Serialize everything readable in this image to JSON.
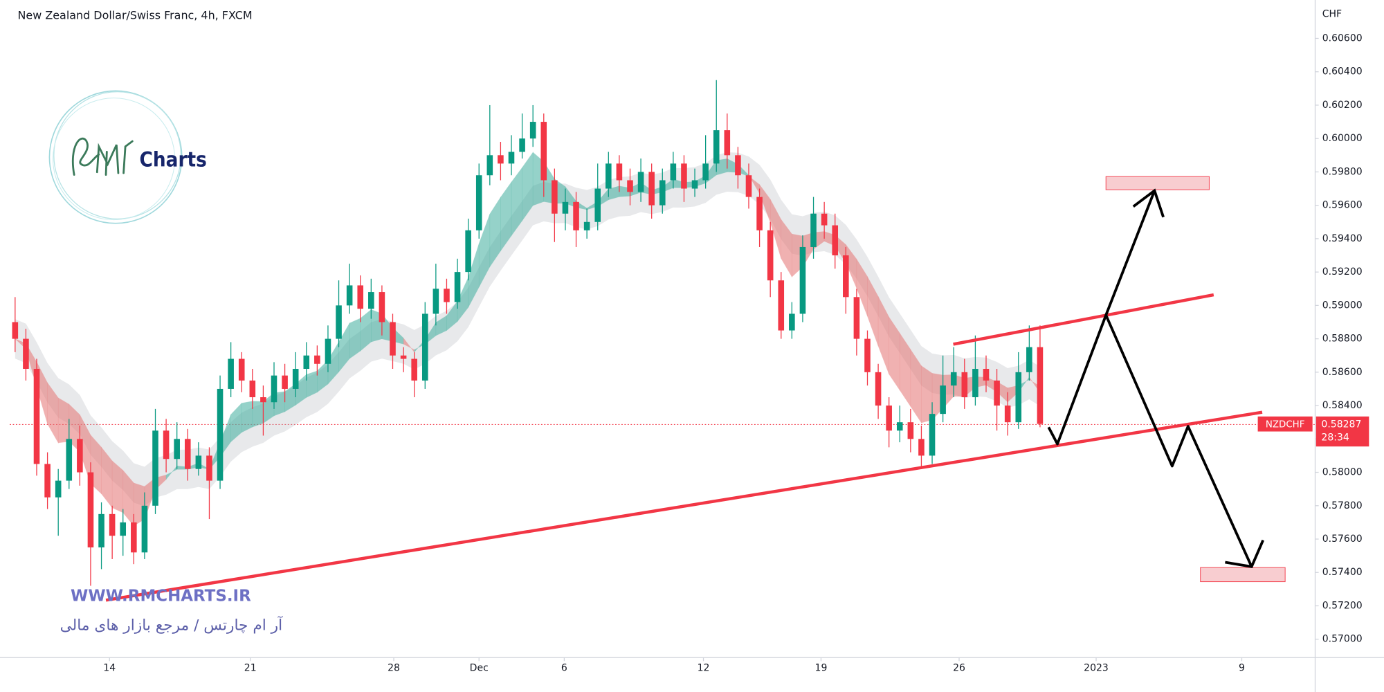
{
  "chart_data": {
    "type": "candlestick",
    "title": "New Zealand Dollar/Swiss Franc, 4h, FXCM",
    "currency": "CHF",
    "up_color": "#089981",
    "down_color": "#f23645",
    "ylim": [
      0.5689,
      0.6083
    ],
    "yticks": [
      {
        "value": 0.57,
        "label": "0.57000"
      },
      {
        "value": 0.572,
        "label": "0.57200"
      },
      {
        "value": 0.574,
        "label": "0.57400"
      },
      {
        "value": 0.576,
        "label": "0.57600"
      },
      {
        "value": 0.578,
        "label": "0.57800"
      },
      {
        "value": 0.58,
        "label": "0.58000"
      },
      {
        "value": 0.582,
        "label": "0.58200"
      },
      {
        "value": 0.584,
        "label": "0.58400"
      },
      {
        "value": 0.586,
        "label": "0.58600"
      },
      {
        "value": 0.588,
        "label": "0.58800"
      },
      {
        "value": 0.59,
        "label": "0.59000"
      },
      {
        "value": 0.592,
        "label": "0.59200"
      },
      {
        "value": 0.594,
        "label": "0.59400"
      },
      {
        "value": 0.596,
        "label": "0.59600"
      },
      {
        "value": 0.598,
        "label": "0.59800"
      },
      {
        "value": 0.6,
        "label": "0.60000"
      },
      {
        "value": 0.602,
        "label": "0.60200"
      },
      {
        "value": 0.604,
        "label": "0.60400"
      },
      {
        "value": 0.606,
        "label": "0.60600"
      }
    ],
    "xlim": [
      -0.5,
      120.5
    ],
    "xticks": [
      {
        "value": 8.75,
        "label": "14"
      },
      {
        "value": 21.8,
        "label": "21"
      },
      {
        "value": 35.1,
        "label": "28"
      },
      {
        "value": 43.0,
        "label": "Dec"
      },
      {
        "value": 50.9,
        "label": "6"
      },
      {
        "value": 63.8,
        "label": "12"
      },
      {
        "value": 74.7,
        "label": "19"
      },
      {
        "value": 87.5,
        "label": "26"
      },
      {
        "value": 100.2,
        "label": "2023"
      },
      {
        "value": 113.7,
        "label": "9"
      }
    ],
    "ohlc": [
      [
        0.589,
        0.5905,
        0.5872,
        0.588
      ],
      [
        0.588,
        0.5886,
        0.5855,
        0.5862
      ],
      [
        0.5862,
        0.5868,
        0.5798,
        0.5805
      ],
      [
        0.5805,
        0.5812,
        0.5778,
        0.5785
      ],
      [
        0.5785,
        0.5802,
        0.5762,
        0.5795
      ],
      [
        0.5795,
        0.5832,
        0.579,
        0.582
      ],
      [
        0.582,
        0.5828,
        0.5792,
        0.58
      ],
      [
        0.58,
        0.5806,
        0.5732,
        0.5755
      ],
      [
        0.5755,
        0.5782,
        0.5742,
        0.5775
      ],
      [
        0.5775,
        0.578,
        0.5748,
        0.5762
      ],
      [
        0.5762,
        0.5778,
        0.575,
        0.577
      ],
      [
        0.577,
        0.5775,
        0.5745,
        0.5752
      ],
      [
        0.5752,
        0.5788,
        0.5748,
        0.578
      ],
      [
        0.578,
        0.5838,
        0.5775,
        0.5825
      ],
      [
        0.5825,
        0.5832,
        0.58,
        0.5808
      ],
      [
        0.5808,
        0.583,
        0.5802,
        0.582
      ],
      [
        0.582,
        0.5826,
        0.5795,
        0.5802
      ],
      [
        0.5802,
        0.5818,
        0.5798,
        0.581
      ],
      [
        0.581,
        0.5815,
        0.5772,
        0.5795
      ],
      [
        0.5795,
        0.5858,
        0.579,
        0.585
      ],
      [
        0.585,
        0.5878,
        0.5845,
        0.5868
      ],
      [
        0.5868,
        0.5872,
        0.5848,
        0.5855
      ],
      [
        0.5855,
        0.5862,
        0.5838,
        0.5845
      ],
      [
        0.5845,
        0.5852,
        0.5822,
        0.5842
      ],
      [
        0.5842,
        0.5866,
        0.5838,
        0.5858
      ],
      [
        0.5858,
        0.5865,
        0.5842,
        0.585
      ],
      [
        0.585,
        0.5872,
        0.5845,
        0.5862
      ],
      [
        0.5862,
        0.5878,
        0.5855,
        0.587
      ],
      [
        0.587,
        0.5876,
        0.5858,
        0.5865
      ],
      [
        0.5865,
        0.5888,
        0.586,
        0.588
      ],
      [
        0.588,
        0.5915,
        0.5875,
        0.59
      ],
      [
        0.59,
        0.5925,
        0.5895,
        0.5912
      ],
      [
        0.5912,
        0.5918,
        0.589,
        0.5898
      ],
      [
        0.5898,
        0.5916,
        0.5892,
        0.5908
      ],
      [
        0.5908,
        0.5912,
        0.5882,
        0.589
      ],
      [
        0.589,
        0.5895,
        0.5862,
        0.587
      ],
      [
        0.587,
        0.5875,
        0.586,
        0.5868
      ],
      [
        0.5868,
        0.5872,
        0.5845,
        0.5855
      ],
      [
        0.5855,
        0.5902,
        0.585,
        0.5895
      ],
      [
        0.5895,
        0.5925,
        0.5888,
        0.591
      ],
      [
        0.591,
        0.5916,
        0.5895,
        0.5902
      ],
      [
        0.5902,
        0.5928,
        0.5898,
        0.592
      ],
      [
        0.592,
        0.5952,
        0.5915,
        0.5945
      ],
      [
        0.5945,
        0.5985,
        0.594,
        0.5978
      ],
      [
        0.5978,
        0.602,
        0.5972,
        0.599
      ],
      [
        0.599,
        0.5998,
        0.5975,
        0.5985
      ],
      [
        0.5985,
        0.6002,
        0.5978,
        0.5992
      ],
      [
        0.5992,
        0.6015,
        0.5988,
        0.6
      ],
      [
        0.6,
        0.602,
        0.5995,
        0.601
      ],
      [
        0.601,
        0.6015,
        0.5965,
        0.5975
      ],
      [
        0.5975,
        0.5982,
        0.5938,
        0.5955
      ],
      [
        0.5955,
        0.597,
        0.5945,
        0.5962
      ],
      [
        0.5962,
        0.5968,
        0.5935,
        0.5945
      ],
      [
        0.5945,
        0.5958,
        0.594,
        0.595
      ],
      [
        0.595,
        0.5985,
        0.5945,
        0.597
      ],
      [
        0.597,
        0.5992,
        0.5965,
        0.5985
      ],
      [
        0.5985,
        0.599,
        0.5968,
        0.5975
      ],
      [
        0.5975,
        0.5982,
        0.596,
        0.5968
      ],
      [
        0.5968,
        0.5988,
        0.5962,
        0.598
      ],
      [
        0.598,
        0.5985,
        0.5952,
        0.596
      ],
      [
        0.596,
        0.5982,
        0.5955,
        0.5975
      ],
      [
        0.5975,
        0.5992,
        0.597,
        0.5985
      ],
      [
        0.5985,
        0.599,
        0.5962,
        0.597
      ],
      [
        0.597,
        0.5982,
        0.5965,
        0.5975
      ],
      [
        0.5975,
        0.6002,
        0.597,
        0.5985
      ],
      [
        0.5985,
        0.6035,
        0.598,
        0.6005
      ],
      [
        0.6005,
        0.6015,
        0.5982,
        0.599
      ],
      [
        0.599,
        0.5995,
        0.597,
        0.5978
      ],
      [
        0.5978,
        0.5985,
        0.5958,
        0.5965
      ],
      [
        0.5965,
        0.597,
        0.5935,
        0.5945
      ],
      [
        0.5945,
        0.595,
        0.5905,
        0.5915
      ],
      [
        0.5915,
        0.592,
        0.588,
        0.5885
      ],
      [
        0.5885,
        0.5902,
        0.588,
        0.5895
      ],
      [
        0.5895,
        0.5942,
        0.589,
        0.5935
      ],
      [
        0.5935,
        0.5965,
        0.5928,
        0.5955
      ],
      [
        0.5955,
        0.5962,
        0.594,
        0.5948
      ],
      [
        0.5948,
        0.5955,
        0.5922,
        0.593
      ],
      [
        0.593,
        0.5935,
        0.5895,
        0.5905
      ],
      [
        0.5905,
        0.591,
        0.587,
        0.588
      ],
      [
        0.588,
        0.5885,
        0.5852,
        0.586
      ],
      [
        0.586,
        0.5865,
        0.5832,
        0.584
      ],
      [
        0.584,
        0.5845,
        0.5815,
        0.5825
      ],
      [
        0.5825,
        0.584,
        0.5818,
        0.583
      ],
      [
        0.583,
        0.5838,
        0.5812,
        0.582
      ],
      [
        0.582,
        0.5828,
        0.5802,
        0.581
      ],
      [
        0.581,
        0.5842,
        0.5805,
        0.5835
      ],
      [
        0.5835,
        0.587,
        0.583,
        0.5852
      ],
      [
        0.5852,
        0.5875,
        0.5845,
        0.586
      ],
      [
        0.586,
        0.5868,
        0.5838,
        0.5845
      ],
      [
        0.5845,
        0.5882,
        0.584,
        0.5862
      ],
      [
        0.5862,
        0.587,
        0.5848,
        0.5855
      ],
      [
        0.5855,
        0.5862,
        0.5825,
        0.584
      ],
      [
        0.584,
        0.5848,
        0.5822,
        0.583
      ],
      [
        0.583,
        0.5872,
        0.5826,
        0.586
      ],
      [
        0.586,
        0.5888,
        0.5855,
        0.5875
      ],
      [
        0.5875,
        0.5888,
        0.5827,
        0.5829
      ]
    ],
    "last_price": {
      "symbol": "NZDCHF",
      "price": 0.58287,
      "countdown": "28:34"
    }
  },
  "branding": {
    "logo_text": "Charts",
    "website": "WWW.RMCHARTS.IR",
    "tagline": "آر ام چارتس / مرجع بازار های مالی"
  }
}
